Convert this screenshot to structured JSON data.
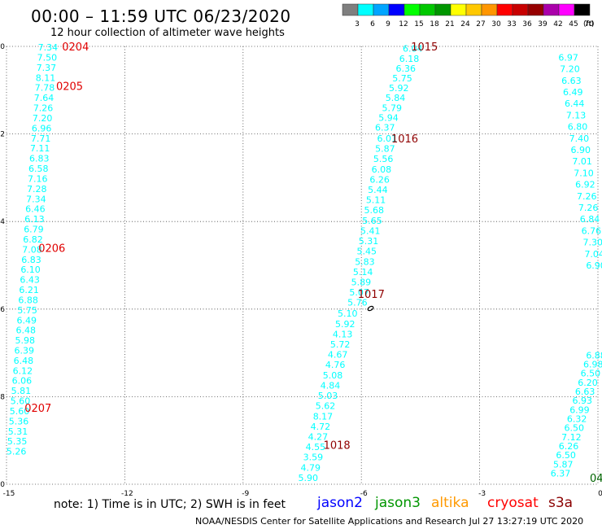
{
  "header": {
    "title": "00:00  –  11:59 UTC 06/23/2020",
    "subtitle": "12 hour collection of altimeter wave heights"
  },
  "legend": {
    "unit": "(ft)",
    "ticks": [
      "3",
      "6",
      "9",
      "12",
      "15",
      "18",
      "21",
      "24",
      "27",
      "30",
      "33",
      "36",
      "39",
      "42",
      "45",
      "70"
    ],
    "colors": [
      "#7f7f7f",
      "#00ffff",
      "#00a5ff",
      "#0000ff",
      "#00ff00",
      "#00c800",
      "#009600",
      "#ffff00",
      "#ffc800",
      "#ff9600",
      "#ff0000",
      "#c80000",
      "#960000",
      "#aa00aa",
      "#ff00ff",
      "#000000"
    ]
  },
  "axes": {
    "lat_labels": [
      "10",
      "12",
      "14",
      "16",
      "18",
      "20"
    ],
    "lon_labels": [
      "-15",
      "-12",
      "-9",
      "-6",
      "-3",
      "0"
    ],
    "lat_range": [
      10,
      20
    ],
    "lon_range": [
      -15,
      0
    ],
    "grid": true
  },
  "tracks": [
    {
      "lon0": -13.95,
      "lat0": 10.02,
      "lon1": -14.75,
      "lat1": 19.25,
      "values": [
        "7.34",
        "7.50",
        "7.37",
        "8.11",
        "7.78",
        "7.64",
        "7.26",
        "7.20",
        "6.96",
        "7.71",
        "7.11",
        "6.83",
        "6.58",
        "7.16",
        "7.28",
        "7.34",
        "6.46",
        "6.13",
        "6.79",
        "6.82",
        "7.08",
        "6.83",
        "6.10",
        "6.43",
        "6.21",
        "6.88",
        "5.75",
        "6.49",
        "6.48",
        "5.98",
        "6.39",
        "6.48",
        "6.12",
        "6.06",
        "5.81",
        "5.60",
        "5.60",
        "5.36",
        "5.31",
        "5.35",
        "5.26"
      ]
    },
    {
      "lon0": -4.7,
      "lat0": 10.05,
      "lon1": -5.4,
      "lat1": 11.85,
      "values": [
        "6.04",
        "6.18",
        "6.36",
        "5.75",
        "5.92",
        "5.84",
        "5.79",
        "5.94",
        "6.37"
      ]
    },
    {
      "lon0": -5.35,
      "lat0": 12.1,
      "lon1": -6.1,
      "lat1": 15.85,
      "values": [
        "6.01",
        "5.87",
        "5.56",
        "6.08",
        "6.26",
        "5.44",
        "5.11",
        "5.68",
        "5.65",
        "5.41",
        "5.31",
        "5.45",
        "5.83",
        "5.14",
        "5.89",
        "5.07",
        "5.76"
      ]
    },
    {
      "lon0": -6.35,
      "lat0": 16.1,
      "lon1": -7.35,
      "lat1": 19.85,
      "values": [
        "5.10",
        "5.92",
        "4.13",
        "5.72",
        "4.67",
        "4.76",
        "5.08",
        "4.84",
        "5.03",
        "5.62",
        "8.17",
        "4.72",
        "4.27",
        "4.55",
        "3.59",
        "4.79",
        "5.90"
      ]
    },
    {
      "lon0": -0.75,
      "lat0": 10.25,
      "lon1": -0.05,
      "lat1": 15.0,
      "values": [
        "6.97",
        "7.20",
        "6.63",
        "6.49",
        "6.44",
        "7.13",
        "6.80",
        "7.40",
        "6.90",
        "7.01",
        "7.10",
        "6.92",
        "7.26",
        "7.26",
        "6.84",
        "6.76",
        "7.30",
        "7.04",
        "6.90"
      ]
    },
    {
      "lon0": -0.05,
      "lat0": 17.05,
      "lon1": -0.95,
      "lat1": 19.75,
      "values": [
        "6.88",
        "6.98",
        "6.50",
        "6.20",
        "6.63",
        "6.93",
        "6.99",
        "6.32",
        "6.50",
        "7.12",
        "6.26",
        "6.50",
        "5.87",
        "6.37"
      ]
    }
  ],
  "time_labels": [
    {
      "text": "0204",
      "lon": -13.25,
      "lat": 10.0,
      "color": "#e00000"
    },
    {
      "text": "0205",
      "lon": -13.4,
      "lat": 10.9,
      "color": "#e00000"
    },
    {
      "text": "0206",
      "lon": -13.85,
      "lat": 14.6,
      "color": "#e00000"
    },
    {
      "text": "0207",
      "lon": -14.2,
      "lat": 18.25,
      "color": "#e00000"
    },
    {
      "text": "1015",
      "lon": -4.4,
      "lat": 10.0,
      "color": "#900000"
    },
    {
      "text": "1016",
      "lon": -4.9,
      "lat": 12.1,
      "color": "#900000"
    },
    {
      "text": "1017",
      "lon": -5.75,
      "lat": 15.65,
      "color": "#900000"
    },
    {
      "text": "1018",
      "lon": -6.62,
      "lat": 19.1,
      "color": "#900000"
    },
    {
      "text": "045",
      "lon": 0.05,
      "lat": 19.85,
      "color": "#006400"
    }
  ],
  "footer": {
    "note": "note:  1) Time is in UTC;  2) SWH is in feet",
    "missions": [
      {
        "name": "jason2",
        "color": "#0000ff"
      },
      {
        "name": "jason3",
        "color": "#009600"
      },
      {
        "name": "altika",
        "color": "#ff9900"
      },
      {
        "name": "cryosat",
        "color": "#ff0000"
      },
      {
        "name": "s3a",
        "color": "#8b0000"
      }
    ],
    "credit": "NOAA/NESDIS Center for Satellite Applications and Research    Jul 27 13:27:19 UTC 2020"
  }
}
